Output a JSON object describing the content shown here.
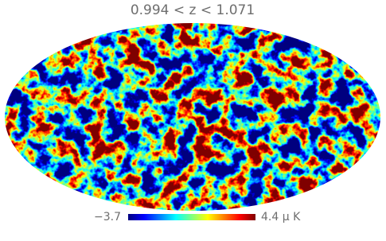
{
  "title": "0.994 < z < 1.071",
  "colorbar": {
    "min_label": "−3.7",
    "max_label": "4.4 μ K"
  }
}
